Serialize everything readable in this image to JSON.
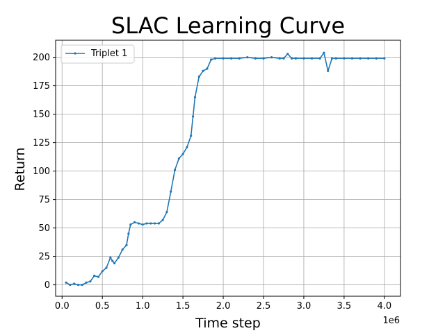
{
  "chart_data": {
    "type": "line",
    "title": "SLAC Learning Curve",
    "xlabel": "Time step",
    "ylabel": "Return",
    "x_offset_label": "1e6",
    "xlim": [
      -0.08,
      4.2
    ],
    "ylim": [
      -10,
      215
    ],
    "xticks": [
      0.0,
      0.5,
      1.0,
      1.5,
      2.0,
      2.5,
      3.0,
      3.5,
      4.0
    ],
    "xtick_labels": [
      "0.0",
      "0.5",
      "1.0",
      "1.5",
      "2.0",
      "2.5",
      "3.0",
      "3.5",
      "4.0"
    ],
    "yticks": [
      0,
      25,
      50,
      75,
      100,
      125,
      150,
      175,
      200
    ],
    "ytick_labels": [
      "0",
      "25",
      "50",
      "75",
      "100",
      "125",
      "150",
      "175",
      "200"
    ],
    "grid": true,
    "legend_position": "upper-left",
    "series": [
      {
        "name": "Triplet 1",
        "color": "#1f77b4",
        "x": [
          0.05,
          0.1,
          0.15,
          0.2,
          0.25,
          0.3,
          0.35,
          0.4,
          0.45,
          0.5,
          0.55,
          0.6,
          0.625,
          0.65,
          0.7,
          0.75,
          0.8,
          0.825,
          0.85,
          0.9,
          0.95,
          1.0,
          1.05,
          1.1,
          1.15,
          1.2,
          1.25,
          1.3,
          1.35,
          1.4,
          1.45,
          1.5,
          1.55,
          1.6,
          1.625,
          1.65,
          1.7,
          1.75,
          1.8,
          1.85,
          1.9,
          2.0,
          2.1,
          2.2,
          2.3,
          2.4,
          2.5,
          2.6,
          2.7,
          2.75,
          2.8,
          2.85,
          2.9,
          3.0,
          3.1,
          3.2,
          3.25,
          3.3,
          3.35,
          3.4,
          3.5,
          3.6,
          3.7,
          3.8,
          3.9,
          4.0
        ],
        "values": [
          2,
          0,
          1,
          0,
          0,
          2,
          3,
          8,
          7,
          12,
          15,
          24,
          21,
          19,
          24,
          31,
          35,
          45,
          53,
          55,
          54,
          53,
          54,
          54,
          54,
          54,
          57,
          64,
          82,
          101,
          111,
          115,
          121,
          131,
          148,
          165,
          183,
          188,
          190,
          198,
          199,
          199,
          199,
          199,
          200,
          199,
          199,
          200,
          199,
          199,
          203,
          199,
          199,
          199,
          199,
          199,
          204,
          188,
          199,
          199,
          199,
          199,
          199,
          199,
          199,
          199
        ]
      }
    ]
  }
}
